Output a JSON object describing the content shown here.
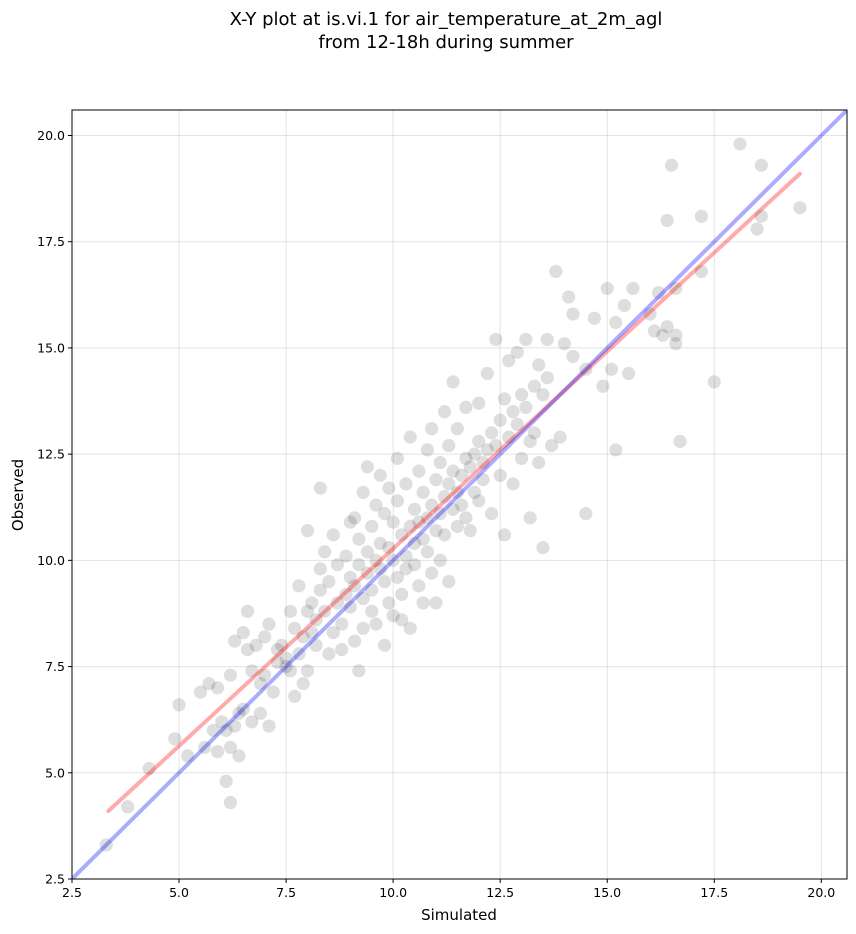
{
  "chart_data": {
    "type": "scatter",
    "title": [
      "X-Y plot at is.vi.1 for air_temperature_at_2m_agl",
      "from 12-18h during summer"
    ],
    "xlabel": "Simulated",
    "ylabel": "Observed",
    "xlim": [
      2.5,
      20.6
    ],
    "ylim": [
      2.5,
      20.6
    ],
    "xticks": [
      2.5,
      5.0,
      7.5,
      10.0,
      12.5,
      15.0,
      17.5,
      20.0
    ],
    "yticks": [
      2.5,
      5.0,
      7.5,
      10.0,
      12.5,
      15.0,
      17.5,
      20.0
    ],
    "xtick_labels": [
      "2.5",
      "5.0",
      "7.5",
      "10.0",
      "12.5",
      "15.0",
      "17.5",
      "20.0"
    ],
    "ytick_labels": [
      "2.5",
      "5.0",
      "7.5",
      "10.0",
      "12.5",
      "15.0",
      "17.5",
      "20.0"
    ],
    "grid": true,
    "point_color": "#000000",
    "point_alpha": 0.13,
    "series": [
      {
        "kind": "scatter",
        "points": [
          [
            3.3,
            3.3
          ],
          [
            3.8,
            4.2
          ],
          [
            4.3,
            5.1
          ],
          [
            4.9,
            5.8
          ],
          [
            5.0,
            6.6
          ],
          [
            5.2,
            5.4
          ],
          [
            5.5,
            6.9
          ],
          [
            5.6,
            5.6
          ],
          [
            5.7,
            7.1
          ],
          [
            5.8,
            6.0
          ],
          [
            5.9,
            7.0
          ],
          [
            5.9,
            5.5
          ],
          [
            6.0,
            6.2
          ],
          [
            6.1,
            4.8
          ],
          [
            6.1,
            6.0
          ],
          [
            6.2,
            7.3
          ],
          [
            6.2,
            5.6
          ],
          [
            6.2,
            4.3
          ],
          [
            6.3,
            6.1
          ],
          [
            6.3,
            8.1
          ],
          [
            6.4,
            5.4
          ],
          [
            6.4,
            6.4
          ],
          [
            6.5,
            8.3
          ],
          [
            6.5,
            6.5
          ],
          [
            6.6,
            8.8
          ],
          [
            6.6,
            7.9
          ],
          [
            6.7,
            7.4
          ],
          [
            6.7,
            6.2
          ],
          [
            6.8,
            8.0
          ],
          [
            6.9,
            7.1
          ],
          [
            6.9,
            6.4
          ],
          [
            7.0,
            7.3
          ],
          [
            7.0,
            8.2
          ],
          [
            7.1,
            8.5
          ],
          [
            7.1,
            6.1
          ],
          [
            7.2,
            6.9
          ],
          [
            7.3,
            7.6
          ],
          [
            7.3,
            7.9
          ],
          [
            7.4,
            8.0
          ],
          [
            7.5,
            7.5
          ],
          [
            7.5,
            7.7
          ],
          [
            7.6,
            8.8
          ],
          [
            7.6,
            7.4
          ],
          [
            7.7,
            8.4
          ],
          [
            7.7,
            6.8
          ],
          [
            7.8,
            7.8
          ],
          [
            7.8,
            9.4
          ],
          [
            7.9,
            7.1
          ],
          [
            7.9,
            8.2
          ],
          [
            8.0,
            8.8
          ],
          [
            8.0,
            7.4
          ],
          [
            8.0,
            10.7
          ],
          [
            8.1,
            8.3
          ],
          [
            8.1,
            9.0
          ],
          [
            8.2,
            8.0
          ],
          [
            8.2,
            8.6
          ],
          [
            8.3,
            9.3
          ],
          [
            8.3,
            9.8
          ],
          [
            8.3,
            11.7
          ],
          [
            8.4,
            8.8
          ],
          [
            8.4,
            10.2
          ],
          [
            8.5,
            7.8
          ],
          [
            8.5,
            9.5
          ],
          [
            8.6,
            8.3
          ],
          [
            8.6,
            10.6
          ],
          [
            8.7,
            9.0
          ],
          [
            8.7,
            9.9
          ],
          [
            8.8,
            8.5
          ],
          [
            8.8,
            7.9
          ],
          [
            8.9,
            10.1
          ],
          [
            8.9,
            9.2
          ],
          [
            9.0,
            9.6
          ],
          [
            9.0,
            8.9
          ],
          [
            9.0,
            10.9
          ],
          [
            9.1,
            9.4
          ],
          [
            9.1,
            11.0
          ],
          [
            9.1,
            8.1
          ],
          [
            9.2,
            9.9
          ],
          [
            9.2,
            10.5
          ],
          [
            9.2,
            7.4
          ],
          [
            9.3,
            11.6
          ],
          [
            9.3,
            9.1
          ],
          [
            9.3,
            8.4
          ],
          [
            9.4,
            10.2
          ],
          [
            9.4,
            9.7
          ],
          [
            9.4,
            12.2
          ],
          [
            9.5,
            10.8
          ],
          [
            9.5,
            9.3
          ],
          [
            9.5,
            8.8
          ],
          [
            9.6,
            10.0
          ],
          [
            9.6,
            11.3
          ],
          [
            9.6,
            8.5
          ],
          [
            9.7,
            9.8
          ],
          [
            9.7,
            10.4
          ],
          [
            9.7,
            12.0
          ],
          [
            9.8,
            9.5
          ],
          [
            9.8,
            11.1
          ],
          [
            9.8,
            8.0
          ],
          [
            9.9,
            10.3
          ],
          [
            9.9,
            9.0
          ],
          [
            9.9,
            11.7
          ],
          [
            10.0,
            10.0
          ],
          [
            10.0,
            10.9
          ],
          [
            10.0,
            8.7
          ],
          [
            10.1,
            9.6
          ],
          [
            10.1,
            11.4
          ],
          [
            10.1,
            12.4
          ],
          [
            10.2,
            10.6
          ],
          [
            10.2,
            9.2
          ],
          [
            10.2,
            8.6
          ],
          [
            10.3,
            10.1
          ],
          [
            10.3,
            11.8
          ],
          [
            10.3,
            9.8
          ],
          [
            10.4,
            10.8
          ],
          [
            10.4,
            12.9
          ],
          [
            10.4,
            8.4
          ],
          [
            10.5,
            10.4
          ],
          [
            10.5,
            9.9
          ],
          [
            10.5,
            11.2
          ],
          [
            10.6,
            10.9
          ],
          [
            10.6,
            9.4
          ],
          [
            10.6,
            12.1
          ],
          [
            10.7,
            10.5
          ],
          [
            10.7,
            11.6
          ],
          [
            10.7,
            9.0
          ],
          [
            10.8,
            11.0
          ],
          [
            10.8,
            10.2
          ],
          [
            10.8,
            12.6
          ],
          [
            10.9,
            11.3
          ],
          [
            10.9,
            9.7
          ],
          [
            10.9,
            13.1
          ],
          [
            11.0,
            10.7
          ],
          [
            11.0,
            11.9
          ],
          [
            11.0,
            9.0
          ],
          [
            11.1,
            11.1
          ],
          [
            11.1,
            12.3
          ],
          [
            11.1,
            10.0
          ],
          [
            11.2,
            11.5
          ],
          [
            11.2,
            10.6
          ],
          [
            11.2,
            13.5
          ],
          [
            11.3,
            11.8
          ],
          [
            11.3,
            12.7
          ],
          [
            11.3,
            9.5
          ],
          [
            11.4,
            11.2
          ],
          [
            11.4,
            12.1
          ],
          [
            11.4,
            14.2
          ],
          [
            11.5,
            11.6
          ],
          [
            11.5,
            10.8
          ],
          [
            11.5,
            13.1
          ],
          [
            11.6,
            12.0
          ],
          [
            11.6,
            11.3
          ],
          [
            11.7,
            12.4
          ],
          [
            11.7,
            11.0
          ],
          [
            11.7,
            13.6
          ],
          [
            11.8,
            12.2
          ],
          [
            11.8,
            10.7
          ],
          [
            11.9,
            12.5
          ],
          [
            11.9,
            11.6
          ],
          [
            12.0,
            12.8
          ],
          [
            12.0,
            11.4
          ],
          [
            12.0,
            13.7
          ],
          [
            12.1,
            12.3
          ],
          [
            12.1,
            11.9
          ],
          [
            12.2,
            12.6
          ],
          [
            12.2,
            14.4
          ],
          [
            12.3,
            13.0
          ],
          [
            12.3,
            11.1
          ],
          [
            12.4,
            12.7
          ],
          [
            12.4,
            15.2
          ],
          [
            12.5,
            13.3
          ],
          [
            12.5,
            12.0
          ],
          [
            12.6,
            13.8
          ],
          [
            12.6,
            10.6
          ],
          [
            12.7,
            12.9
          ],
          [
            12.7,
            14.7
          ],
          [
            12.8,
            13.5
          ],
          [
            12.8,
            11.8
          ],
          [
            12.9,
            13.2
          ],
          [
            12.9,
            14.9
          ],
          [
            13.0,
            13.9
          ],
          [
            13.0,
            12.4
          ],
          [
            13.1,
            13.6
          ],
          [
            13.1,
            15.2
          ],
          [
            13.2,
            12.8
          ],
          [
            13.2,
            11.0
          ],
          [
            13.3,
            14.1
          ],
          [
            13.3,
            13.0
          ],
          [
            13.4,
            14.6
          ],
          [
            13.4,
            12.3
          ],
          [
            13.5,
            13.9
          ],
          [
            13.5,
            10.3
          ],
          [
            13.6,
            14.3
          ],
          [
            13.6,
            15.2
          ],
          [
            13.7,
            12.7
          ],
          [
            13.8,
            16.8
          ],
          [
            13.9,
            12.9
          ],
          [
            14.0,
            15.1
          ],
          [
            14.1,
            16.2
          ],
          [
            14.2,
            14.8
          ],
          [
            14.2,
            15.8
          ],
          [
            14.5,
            11.1
          ],
          [
            14.5,
            14.5
          ],
          [
            14.7,
            15.7
          ],
          [
            14.9,
            14.1
          ],
          [
            15.0,
            16.4
          ],
          [
            15.1,
            14.5
          ],
          [
            15.2,
            15.6
          ],
          [
            15.2,
            12.6
          ],
          [
            15.4,
            16.0
          ],
          [
            15.5,
            14.4
          ],
          [
            15.6,
            16.4
          ],
          [
            16.0,
            15.8
          ],
          [
            16.1,
            15.4
          ],
          [
            16.2,
            16.3
          ],
          [
            16.3,
            15.3
          ],
          [
            16.4,
            18.0
          ],
          [
            16.4,
            15.5
          ],
          [
            16.5,
            19.3
          ],
          [
            16.6,
            15.3
          ],
          [
            16.6,
            16.4
          ],
          [
            16.6,
            15.1
          ],
          [
            16.7,
            12.8
          ],
          [
            17.2,
            16.8
          ],
          [
            17.2,
            18.1
          ],
          [
            17.5,
            14.2
          ],
          [
            18.1,
            19.8
          ],
          [
            18.5,
            17.8
          ],
          [
            18.6,
            19.3
          ],
          [
            18.6,
            18.1
          ],
          [
            19.5,
            18.3
          ]
        ]
      },
      {
        "kind": "line",
        "color": "#ff0000",
        "alpha": 0.33,
        "points": [
          [
            3.35,
            4.1
          ],
          [
            19.5,
            19.1
          ]
        ]
      },
      {
        "kind": "line",
        "color": "#0000ff",
        "alpha": 0.33,
        "points": [
          [
            2.5,
            2.5
          ],
          [
            20.6,
            20.6
          ]
        ]
      }
    ]
  }
}
